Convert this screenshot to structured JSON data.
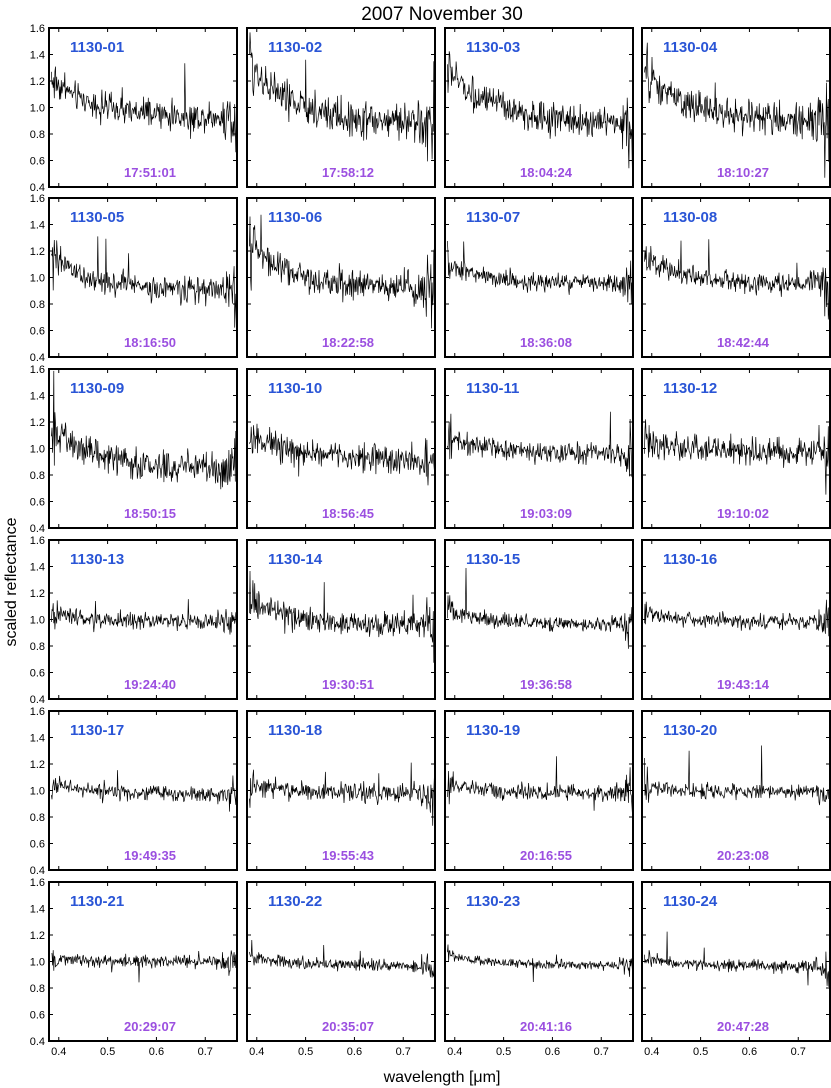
{
  "colors": {
    "id_text": "#2a55d6",
    "time_text": "#9b4fe0",
    "trace": "#000000"
  },
  "chart_data": {
    "type": "line",
    "title": "2007 November 30",
    "xlabel": "wavelength [μm]",
    "ylabel": "scaled reflectance",
    "xlim": [
      0.38,
      0.765
    ],
    "ylim": [
      0.4,
      1.6
    ],
    "xticks": [
      "0.4",
      "0.5",
      "0.6",
      "0.7"
    ],
    "yticks": [
      "0.4",
      "0.6",
      "0.8",
      "1.0",
      "1.2",
      "1.4",
      "1.6"
    ],
    "grid": false,
    "panels": [
      {
        "id": "1130-01",
        "time": "17:51:01",
        "start": 1.22,
        "end": 0.92,
        "noise": 0.09
      },
      {
        "id": "1130-02",
        "time": "17:58:12",
        "start": 1.35,
        "end": 0.88,
        "noise": 0.12
      },
      {
        "id": "1130-03",
        "time": "18:04:24",
        "start": 1.3,
        "end": 0.88,
        "noise": 0.1
      },
      {
        "id": "1130-04",
        "time": "18:10:27",
        "start": 1.25,
        "end": 0.9,
        "noise": 0.11
      },
      {
        "id": "1130-05",
        "time": "18:16:50",
        "start": 1.15,
        "end": 0.9,
        "noise": 0.08
      },
      {
        "id": "1130-06",
        "time": "18:22:58",
        "start": 1.25,
        "end": 0.92,
        "noise": 0.1
      },
      {
        "id": "1130-07",
        "time": "18:36:08",
        "start": 1.1,
        "end": 0.95,
        "noise": 0.06
      },
      {
        "id": "1130-08",
        "time": "18:42:44",
        "start": 1.15,
        "end": 0.95,
        "noise": 0.07
      },
      {
        "id": "1130-09",
        "time": "18:50:15",
        "start": 1.15,
        "end": 0.85,
        "noise": 0.1
      },
      {
        "id": "1130-10",
        "time": "18:56:45",
        "start": 1.1,
        "end": 0.92,
        "noise": 0.09
      },
      {
        "id": "1130-11",
        "time": "19:03:09",
        "start": 1.08,
        "end": 0.96,
        "noise": 0.07
      },
      {
        "id": "1130-12",
        "time": "19:10:02",
        "start": 1.05,
        "end": 0.97,
        "noise": 0.09
      },
      {
        "id": "1130-13",
        "time": "19:24:40",
        "start": 1.05,
        "end": 0.98,
        "noise": 0.06
      },
      {
        "id": "1130-14",
        "time": "19:30:51",
        "start": 1.15,
        "end": 0.95,
        "noise": 0.08
      },
      {
        "id": "1130-15",
        "time": "19:36:58",
        "start": 1.08,
        "end": 0.96,
        "noise": 0.05
      },
      {
        "id": "1130-16",
        "time": "19:43:14",
        "start": 1.05,
        "end": 0.98,
        "noise": 0.05
      },
      {
        "id": "1130-17",
        "time": "19:49:35",
        "start": 1.05,
        "end": 0.97,
        "noise": 0.05
      },
      {
        "id": "1130-18",
        "time": "19:55:43",
        "start": 1.05,
        "end": 0.98,
        "noise": 0.06
      },
      {
        "id": "1130-19",
        "time": "20:16:55",
        "start": 1.05,
        "end": 0.98,
        "noise": 0.05
      },
      {
        "id": "1130-20",
        "time": "20:23:08",
        "start": 1.03,
        "end": 0.99,
        "noise": 0.05
      },
      {
        "id": "1130-21",
        "time": "20:29:07",
        "start": 1.02,
        "end": 1.0,
        "noise": 0.04
      },
      {
        "id": "1130-22",
        "time": "20:35:07",
        "start": 1.04,
        "end": 0.97,
        "noise": 0.04
      },
      {
        "id": "1130-23",
        "time": "20:41:16",
        "start": 1.05,
        "end": 0.97,
        "noise": 0.03
      },
      {
        "id": "1130-24",
        "time": "20:47:28",
        "start": 1.03,
        "end": 0.96,
        "noise": 0.04
      }
    ]
  }
}
